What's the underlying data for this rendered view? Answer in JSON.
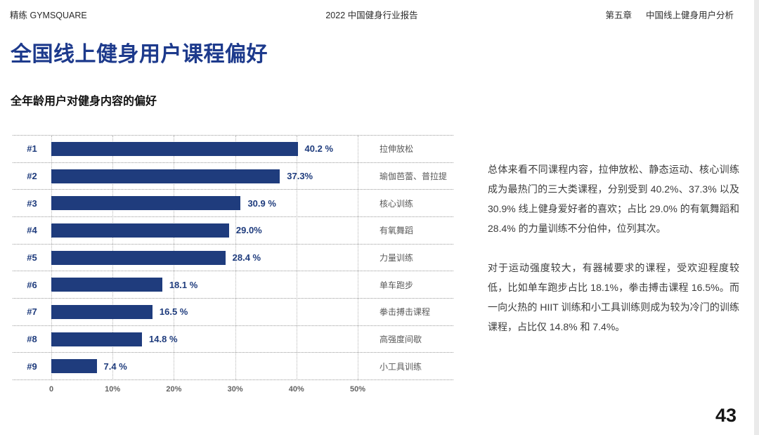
{
  "header": {
    "brand": "精练 GYMSQUARE",
    "report_title": "2022 中国健身行业报告",
    "chapter": "第五章",
    "chapter_title": "中国线上健身用户分析"
  },
  "title": "全国线上健身用户课程偏好",
  "subtitle": "全年龄用户对健身内容的偏好",
  "chart_data": {
    "type": "bar",
    "orientation": "horizontal",
    "ranks": [
      "#1",
      "#2",
      "#3",
      "#4",
      "#5",
      "#6",
      "#7",
      "#8",
      "#9"
    ],
    "categories": [
      "拉伸放松",
      "瑜伽芭蕾、普拉提",
      "核心训练",
      "有氧舞蹈",
      "力量训练",
      "单车跑步",
      "拳击搏击课程",
      "高强度间歇",
      "小工具训练"
    ],
    "values": [
      40.2,
      37.3,
      30.9,
      29.0,
      28.4,
      18.1,
      16.5,
      14.8,
      7.4
    ],
    "value_labels": [
      "40.2 %",
      "37.3%",
      "30.9 %",
      "29.0%",
      "28.4 %",
      "18.1 %",
      "16.5 %",
      "14.8 %",
      "7.4 %"
    ],
    "x_ticks": [
      "0",
      "10%",
      "20%",
      "30%",
      "40%",
      "50%"
    ],
    "xlim": [
      0,
      50
    ],
    "grid": "dotted",
    "bar_color": "#1f3c7d",
    "title": "全年龄用户对健身内容的偏好"
  },
  "commentary": {
    "paragraph1": "总体来看不同课程内容，拉伸放松、静态运动、核心训练成为最热门的三大类课程，分别受到 40.2%、37.3% 以及 30.9% 线上健身爱好者的喜欢；占比 29.0% 的有氧舞蹈和 28.4% 的力量训练不分伯仲，位列其次。",
    "paragraph2": "对于运动强度较大，有器械要求的课程，受欢迎程度较低，比如单车跑步占比 18.1%，拳击搏击课程 16.5%。而一向火热的 HIIT 训练和小工具训练则成为较为冷门的训练课程，占比仅 14.8% 和 7.4%。"
  },
  "page_number": "43",
  "colors": {
    "brand_navy": "#1f3c7d",
    "title_blue": "#1d3a8c",
    "edge_strip": "#eaeaea"
  }
}
